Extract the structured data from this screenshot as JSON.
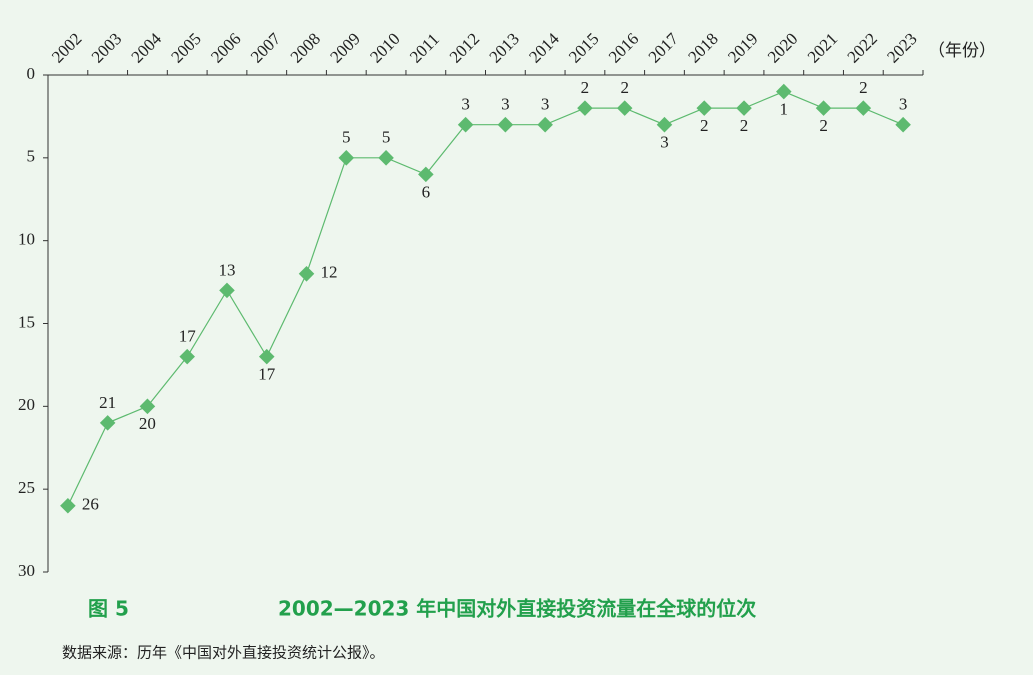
{
  "chart_data": {
    "type": "line",
    "figure_number": "图 5",
    "title": "2002—2023 年中国对外直接投资流量在全球的位次",
    "x_label": "（年份）",
    "source": "数据来源：历年《中国对外直接投资统计公报》。",
    "categories": [
      "2002",
      "2003",
      "2004",
      "2005",
      "2006",
      "2007",
      "2008",
      "2009",
      "2010",
      "2011",
      "2012",
      "2013",
      "2014",
      "2015",
      "2016",
      "2017",
      "2018",
      "2019",
      "2020",
      "2021",
      "2022",
      "2023"
    ],
    "series": [
      {
        "color": "#5dba6f",
        "values": [
          26,
          21,
          20,
          17,
          13,
          17,
          12,
          5,
          5,
          6,
          3,
          3,
          3,
          2,
          2,
          3,
          2,
          2,
          1,
          2,
          2,
          3
        ]
      }
    ],
    "ylim": [
      0,
      30
    ],
    "yticks": [
      0,
      5,
      10,
      15,
      20,
      25,
      30
    ],
    "y_inverted": true,
    "x_axis_position": "top"
  }
}
